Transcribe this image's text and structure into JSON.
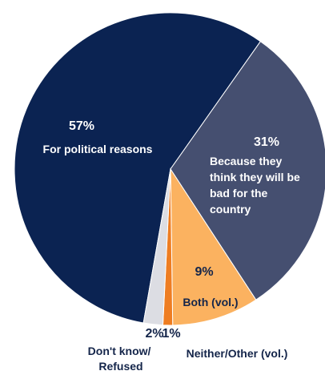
{
  "chart_data": {
    "type": "pie",
    "title": "",
    "slices": [
      {
        "label": "For political reasons",
        "value": 57,
        "value_label": "57%",
        "color": "#0b2352"
      },
      {
        "label": "Because they think they will be bad for the country",
        "label_lines": [
          "Because they",
          "think they will be",
          "bad for the",
          "country"
        ],
        "value": 31,
        "value_label": "31%",
        "color": "#454f70"
      },
      {
        "label": "Both (vol.)",
        "value": 9,
        "value_label": "9%",
        "color": "#fbb260"
      },
      {
        "label": "Neither/Other (vol.)",
        "value": 1,
        "value_label": "1%",
        "color": "#ee7d22"
      },
      {
        "label": "Don't know/ Refused",
        "label_lines": [
          "Don't know/",
          "Refused"
        ],
        "value": 2,
        "value_label": "2%",
        "color": "#dcdde3"
      }
    ]
  }
}
